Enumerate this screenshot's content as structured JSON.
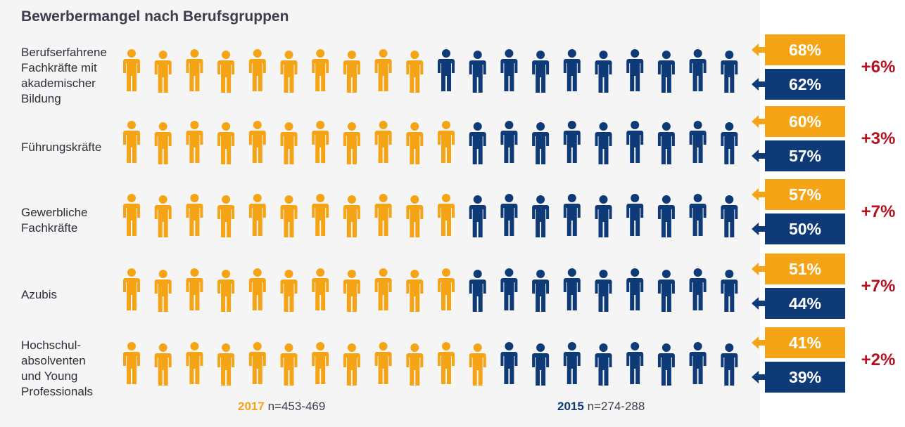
{
  "title": "Bewerbermangel nach Berufsgruppen",
  "colors": {
    "y2017": "#f5a416",
    "y2015": "#0f3a78",
    "delta": "#b3121f"
  },
  "chart_data": {
    "type": "pictogram",
    "title": "Bewerbermangel nach Berufsgruppen",
    "series": [
      {
        "name": "2017",
        "values": [
          68,
          60,
          57,
          51,
          41
        ]
      },
      {
        "name": "2015",
        "values": [
          62,
          57,
          50,
          44,
          39
        ]
      }
    ],
    "categories": [
      "Berufserfahrene Fachkräfte mit akademischer Bildung",
      "Führungskräfte",
      "Gewerbliche Fachkräfte",
      "Azubis",
      "Hochschul- absolventen und Young Professionals"
    ],
    "figures_per_row": 20,
    "orange_counts": [
      10,
      11,
      11,
      11,
      12
    ],
    "rows": [
      {
        "label_lines": [
          "Berufserfahrene",
          "Fachkräfte mit",
          "akademischer",
          "Bildung"
        ],
        "v2017": "68%",
        "v2015": "62%",
        "delta": "+6%"
      },
      {
        "label_lines": [
          "Führungskräfte"
        ],
        "v2017": "60%",
        "v2015": "57%",
        "delta": "+3%"
      },
      {
        "label_lines": [
          "Gewerbliche",
          "Fachkräfte"
        ],
        "v2017": "57%",
        "v2015": "50%",
        "delta": "+7%"
      },
      {
        "label_lines": [
          "Azubis"
        ],
        "v2017": "51%",
        "v2015": "44%",
        "delta": "+7%"
      },
      {
        "label_lines": [
          "Hochschul-",
          "absolventen",
          "und Young",
          "Professionals"
        ],
        "v2017": "41%",
        "v2015": "39%",
        "delta": "+2%"
      }
    ]
  },
  "legend": {
    "y2017_year": "2017",
    "y2017_n": "n=453-469",
    "y2015_year": "2015",
    "y2015_n": "n=274-288"
  }
}
